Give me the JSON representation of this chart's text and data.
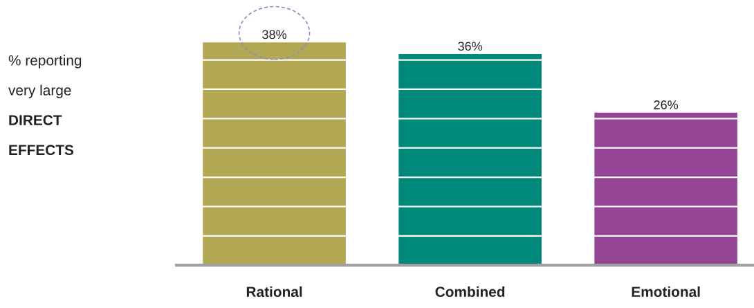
{
  "chart_data": {
    "type": "bar",
    "ylabel": "% reporting\nvery large\nDIRECT\nEFFECTS",
    "categories": [
      "Rational",
      "Combined",
      "Emotional"
    ],
    "values": [
      38,
      36,
      26
    ],
    "colors": [
      "#b2a853",
      "#00897a",
      "#954596"
    ],
    "value_labels": [
      "38%",
      "36%",
      "26%"
    ],
    "yticks": [
      {
        "value": 5,
        "label": null
      },
      {
        "value": 10,
        "label": null
      },
      {
        "value": 15,
        "label": null
      },
      {
        "value": 20,
        "label": null
      },
      {
        "value": 25,
        "label": null
      },
      {
        "value": 30,
        "label": null
      },
      {
        "value": 35,
        "label": null
      }
    ],
    "grid": "y",
    "tick_labels": "x"
  }
}
